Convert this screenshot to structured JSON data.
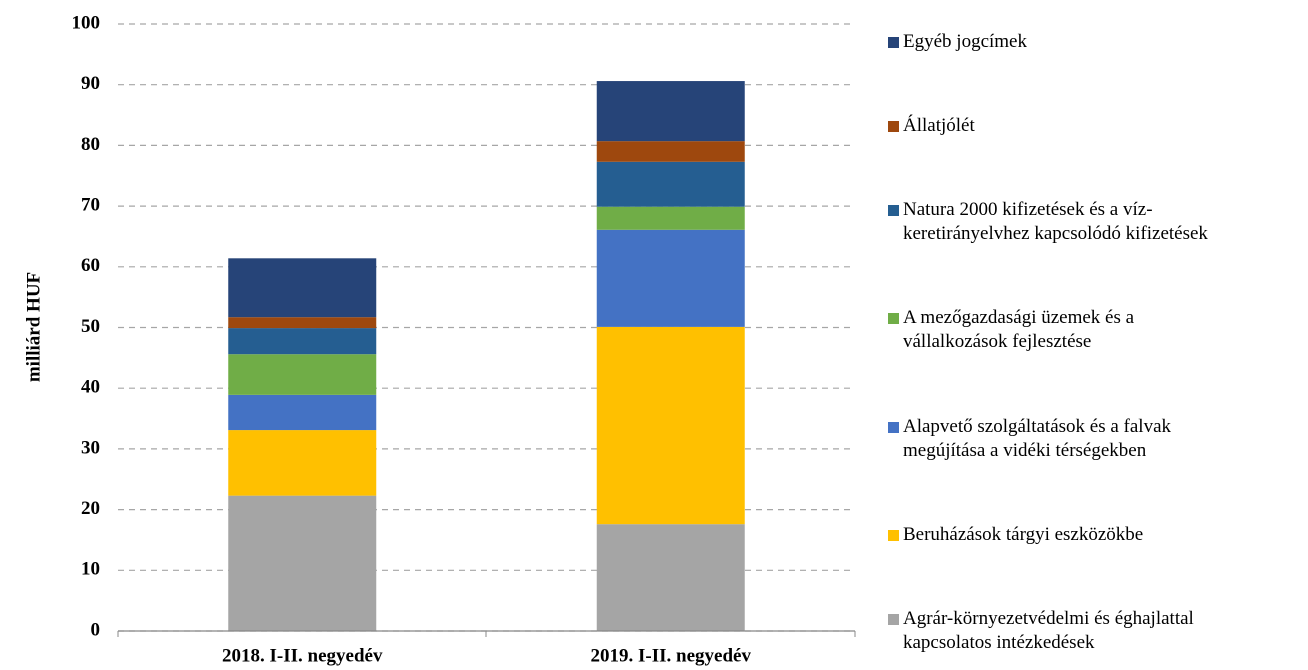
{
  "chart_data": {
    "type": "stacked_bar",
    "y_axis_label": "milliárd HUF",
    "categories": [
      "2018. I-II. negyedév",
      "2019. I-II. negyedév"
    ],
    "series": [
      {
        "name": "Agrár-környezetvédelmi és éghajlattal\nkapcsolatos intézkedések",
        "color": "#a5a5a5",
        "values": [
          22.3,
          17.6
        ]
      },
      {
        "name": "Beruházások tárgyi eszközökbe",
        "color": "#ffc000",
        "values": [
          10.8,
          32.5
        ]
      },
      {
        "name": "Alapvető szolgáltatások és a falvak\nmegújítása a vidéki térségekben",
        "color": "#4472c4",
        "values": [
          5.8,
          16.0
        ]
      },
      {
        "name": "A mezőgazdasági üzemek és a\nvállalkozások fejlesztése",
        "color": "#70ad47",
        "values": [
          6.7,
          3.8
        ]
      },
      {
        "name": "Natura 2000 kifizetések és a víz-\nkeretirányelvhez kapcsolódó kifizetések",
        "color": "#255e91",
        "values": [
          4.3,
          7.4
        ]
      },
      {
        "name": "Állatjólét",
        "color": "#9e480e",
        "values": [
          1.8,
          3.4
        ]
      },
      {
        "name": "Egyéb jogcímek",
        "color": "#264478",
        "values": [
          9.7,
          9.9
        ]
      }
    ],
    "ylim": [
      0,
      100
    ],
    "yticks": [
      0,
      10,
      20,
      30,
      40,
      50,
      60,
      70,
      80,
      90,
      100
    ],
    "grid": true,
    "legend": "right"
  }
}
